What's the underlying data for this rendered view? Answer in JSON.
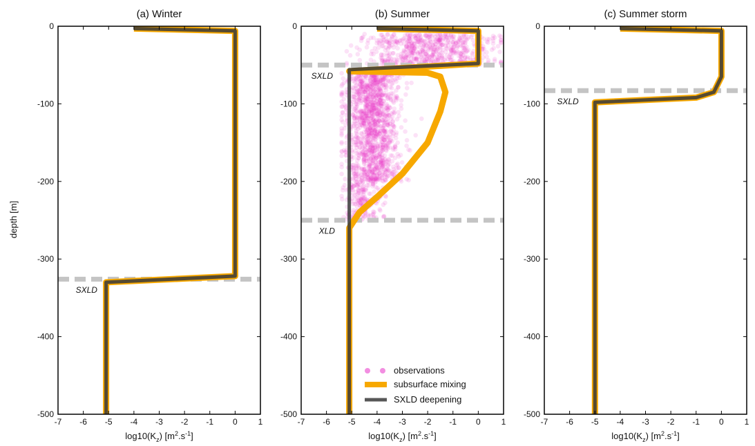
{
  "ylabel": "depth [m]",
  "colors": {
    "observations": "#e832c8",
    "subsurface": "#f7a800",
    "deepening": "#3a3a3a",
    "layer_line": "#c4c4c4"
  },
  "legend": {
    "placement": "lower-right of panel (b)",
    "observations": "observations",
    "subsurface": "subsurface mixing",
    "deepening": "SXLD deepening"
  },
  "chart_data": [
    {
      "type": "line",
      "title": "(a) Winter",
      "xlabel": "log10(K",
      "xlabel_sub": "z",
      "xlabel_mid": ") [m",
      "xlabel_sup": "2",
      "xlabel_end": ".s",
      "xlabel_sup2": "-1",
      "xlabel_close": "]",
      "xlim": [
        -7,
        1
      ],
      "ylim": [
        -500,
        0
      ],
      "xticks": [
        -7,
        -6,
        -5,
        -4,
        -3,
        -2,
        -1,
        0,
        1
      ],
      "yticks": [
        0,
        -100,
        -200,
        -300,
        -400,
        -500
      ],
      "series": [
        {
          "role": "subsurface",
          "x": [
            -4,
            0,
            0,
            -5.1,
            -5.1
          ],
          "y": [
            -3,
            -6,
            -322,
            -330,
            -500
          ]
        },
        {
          "role": "deepening",
          "x": [
            -4,
            0,
            0,
            -5.1,
            -5.1
          ],
          "y": [
            -3,
            -6,
            -322,
            -330,
            -500
          ]
        }
      ],
      "annotations": [
        {
          "text": "SXLD",
          "line_y": -326,
          "text_x": -6.3,
          "text_y": -340
        }
      ]
    },
    {
      "type": "line",
      "title": "(b) Summer",
      "xlabel": "log10(K",
      "xlabel_sub": "z",
      "xlabel_mid": ") [m",
      "xlabel_sup": "2",
      "xlabel_end": ".s",
      "xlabel_sup2": "-1",
      "xlabel_close": "]",
      "xlim": [
        -7,
        1
      ],
      "ylim": [
        -500,
        0
      ],
      "xticks": [
        -7,
        -6,
        -5,
        -4,
        -3,
        -2,
        -1,
        0,
        1
      ],
      "yticks": [
        0,
        -100,
        -200,
        -300,
        -400,
        -500
      ],
      "series": [
        {
          "role": "subsurface",
          "x": [
            -4,
            0,
            0,
            -5.1,
            -2,
            -1.5,
            -1.3,
            -1.5,
            -2,
            -3,
            -4,
            -4.7,
            -5.1,
            -5.1,
            -5.1
          ],
          "y": [
            -3,
            -6,
            -48,
            -58,
            -60,
            -65,
            -85,
            -110,
            -150,
            -190,
            -220,
            -240,
            -260,
            -290,
            -500
          ]
        },
        {
          "role": "deepening",
          "x": [
            -4,
            0,
            0,
            -5.1,
            -5.1,
            -5.1
          ],
          "y": [
            -3,
            -6,
            -48,
            -56,
            -250,
            -500
          ]
        }
      ],
      "observations": {
        "clusters": [
          {
            "x_mean": -2.0,
            "x_sd": 1.3,
            "y_min": -10,
            "y_max": -50
          },
          {
            "x_mean": -4.2,
            "x_sd": 0.55,
            "y_min": -60,
            "y_max": -200
          },
          {
            "x_mean": -4.6,
            "x_sd": 0.4,
            "y_min": -200,
            "y_max": -250
          }
        ]
      },
      "annotations": [
        {
          "text": "SXLD",
          "line_y": -50,
          "text_x": -6.6,
          "text_y": -64
        },
        {
          "text": "XLD",
          "line_y": -250,
          "text_x": -6.3,
          "text_y": -264
        }
      ]
    },
    {
      "type": "line",
      "title": "(c) Summer storm",
      "xlabel": "log10(K",
      "xlabel_sub": "z",
      "xlabel_mid": ") [m",
      "xlabel_sup": "2",
      "xlabel_end": ".s",
      "xlabel_sup2": "-1",
      "xlabel_close": "]",
      "xlim": [
        -7,
        1
      ],
      "ylim": [
        -500,
        0
      ],
      "xticks": [
        -7,
        -6,
        -5,
        -4,
        -3,
        -2,
        -1,
        0,
        1
      ],
      "yticks": [
        0,
        -100,
        -200,
        -300,
        -400,
        -500
      ],
      "series": [
        {
          "role": "subsurface",
          "x": [
            -4,
            0,
            0,
            -0.3,
            -1,
            -5,
            -5
          ],
          "y": [
            -3,
            -6,
            -65,
            -85,
            -92,
            -98,
            -500
          ]
        },
        {
          "role": "deepening",
          "x": [
            -4,
            0,
            0,
            -0.3,
            -1,
            -5,
            -5
          ],
          "y": [
            -3,
            -6,
            -65,
            -85,
            -92,
            -98,
            -500
          ]
        }
      ],
      "annotations": [
        {
          "text": "SXLD",
          "line_y": -83,
          "text_x": -6.5,
          "text_y": -97
        }
      ]
    }
  ]
}
